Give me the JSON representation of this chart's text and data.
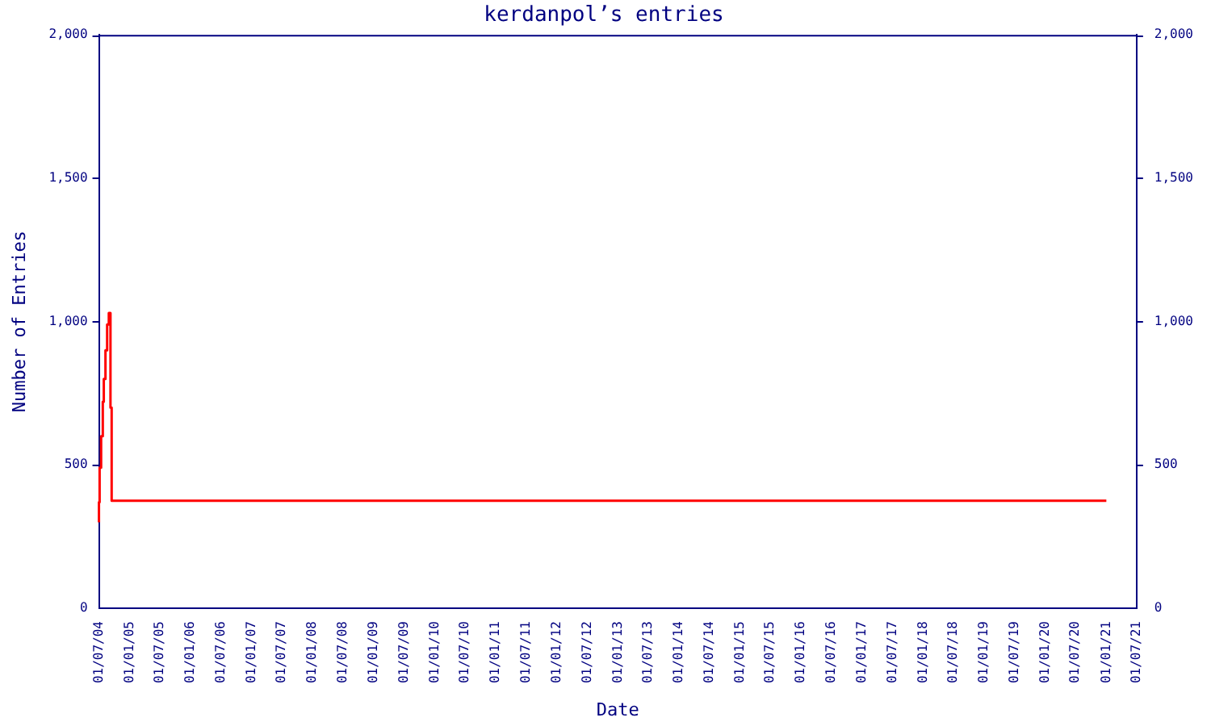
{
  "chart_data": {
    "type": "step",
    "title": "kerdanpol’s entries",
    "xlabel": "Date",
    "ylabel": "Number of Entries",
    "x": [
      "2004-07-01",
      "2004-07-05",
      "2004-07-14",
      "2004-07-24",
      "2004-07-30",
      "2004-08-09",
      "2004-08-19",
      "2004-08-29",
      "2004-09-08",
      "2004-09-15",
      "2004-09-22",
      "2021-01-01"
    ],
    "series": [
      {
        "color": "#ff0000",
        "values": [
          300,
          370,
          490,
          600,
          720,
          800,
          900,
          990,
          1030,
          700,
          375,
          375
        ]
      }
    ],
    "xlim": [
      "2004-07-01",
      "2021-07-01"
    ],
    "xticks": [
      {
        "value": "2004-07-01",
        "label": "01/07/04"
      },
      {
        "value": "2005-01-01",
        "label": "01/01/05"
      },
      {
        "value": "2005-07-01",
        "label": "01/07/05"
      },
      {
        "value": "2006-01-01",
        "label": "01/01/06"
      },
      {
        "value": "2006-07-01",
        "label": "01/07/06"
      },
      {
        "value": "2007-01-01",
        "label": "01/01/07"
      },
      {
        "value": "2007-07-01",
        "label": "01/07/07"
      },
      {
        "value": "2008-01-01",
        "label": "01/01/08"
      },
      {
        "value": "2008-07-01",
        "label": "01/07/08"
      },
      {
        "value": "2009-01-01",
        "label": "01/01/09"
      },
      {
        "value": "2009-07-01",
        "label": "01/07/09"
      },
      {
        "value": "2010-01-01",
        "label": "01/01/10"
      },
      {
        "value": "2010-07-01",
        "label": "01/07/10"
      },
      {
        "value": "2011-01-01",
        "label": "01/01/11"
      },
      {
        "value": "2011-07-01",
        "label": "01/07/11"
      },
      {
        "value": "2012-01-01",
        "label": "01/01/12"
      },
      {
        "value": "2012-07-01",
        "label": "01/07/12"
      },
      {
        "value": "2013-01-01",
        "label": "01/01/13"
      },
      {
        "value": "2013-07-01",
        "label": "01/07/13"
      },
      {
        "value": "2014-01-01",
        "label": "01/01/14"
      },
      {
        "value": "2014-07-01",
        "label": "01/07/14"
      },
      {
        "value": "2015-01-01",
        "label": "01/01/15"
      },
      {
        "value": "2015-07-01",
        "label": "01/07/15"
      },
      {
        "value": "2016-01-01",
        "label": "01/01/16"
      },
      {
        "value": "2016-07-01",
        "label": "01/07/16"
      },
      {
        "value": "2017-01-01",
        "label": "01/01/17"
      },
      {
        "value": "2017-07-01",
        "label": "01/07/17"
      },
      {
        "value": "2018-01-01",
        "label": "01/01/18"
      },
      {
        "value": "2018-07-01",
        "label": "01/07/18"
      },
      {
        "value": "2019-01-01",
        "label": "01/01/19"
      },
      {
        "value": "2019-07-01",
        "label": "01/07/19"
      },
      {
        "value": "2020-01-01",
        "label": "01/01/20"
      },
      {
        "value": "2020-07-01",
        "label": "01/07/20"
      },
      {
        "value": "2021-01-01",
        "label": "01/01/21"
      },
      {
        "value": "2021-07-01",
        "label": "01/07/21"
      }
    ],
    "ylim": [
      0,
      2000
    ],
    "yticks": [
      0,
      500,
      {
        "value": 1000,
        "label": "1,000"
      },
      {
        "value": 1500,
        "label": "1,500"
      },
      {
        "value": 2000,
        "label": "2,000"
      }
    ],
    "y2lim": [
      0,
      2000
    ],
    "y2ticks": [
      0,
      500,
      {
        "value": 1000,
        "label": "1,000"
      },
      {
        "value": 1500,
        "label": "1,500"
      },
      {
        "value": 2000,
        "label": "2,000"
      }
    ],
    "grid": false,
    "legend": false,
    "marker": "none",
    "line_style": "solid"
  }
}
